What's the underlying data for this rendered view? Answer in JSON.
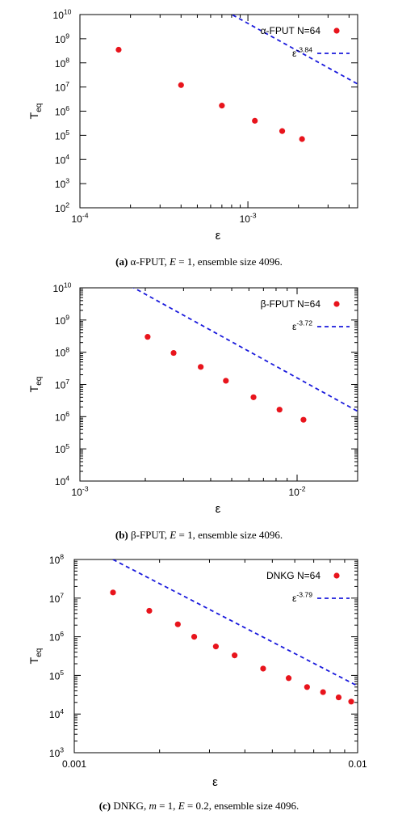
{
  "panels": [
    {
      "caption": {
        "label": "(a)",
        "pre": "α-FPUT, ",
        "var1": "E",
        "rest": " = 1, ensemble size 4096."
      },
      "chart_data": {
        "type": "scatter",
        "xscale": "log",
        "yscale": "log",
        "xlim": [
          0.0001,
          0.0045
        ],
        "ylim": [
          100,
          10000000000
        ],
        "xticks": [
          {
            "value": 0.0001,
            "base": "10",
            "exp": "-4"
          },
          {
            "value": 0.001,
            "base": "10",
            "exp": "-3"
          }
        ],
        "yticks": [
          {
            "value": 100,
            "base": "10",
            "exp": "2"
          },
          {
            "value": 1000,
            "base": "10",
            "exp": "3"
          },
          {
            "value": 10000,
            "base": "10",
            "exp": "4"
          },
          {
            "value": 100000,
            "base": "10",
            "exp": "5"
          },
          {
            "value": 1000000,
            "base": "10",
            "exp": "6"
          },
          {
            "value": 10000000,
            "base": "10",
            "exp": "7"
          },
          {
            "value": 100000000,
            "base": "10",
            "exp": "8"
          },
          {
            "value": 1000000000,
            "base": "10",
            "exp": "9"
          },
          {
            "value": 10000000000,
            "base": "10",
            "exp": "10"
          }
        ],
        "xlabel": "ε",
        "ylabel_base": "T",
        "ylabel_sub": "eq",
        "legend_position": "top-right",
        "series": [
          {
            "name": "α-FPUT N=64",
            "kind": "points",
            "color": "#e8141c",
            "x": [
              0.00017,
              0.0004,
              0.0007,
              0.0011,
              0.0016,
              0.0021
            ],
            "y": [
              350000000,
              12000000,
              1700000,
              400000,
              150000,
              70000
            ]
          },
          {
            "name_base": "ε",
            "name_exp": "-3.84",
            "kind": "fit",
            "color": "#1a1adc",
            "exponent": -3.84,
            "coefficient": 0.013,
            "xrange": [
              0.0001,
              0.0045
            ]
          }
        ]
      }
    },
    {
      "caption": {
        "label": "(b)",
        "pre": "β-FPUT, ",
        "var1": "E",
        "rest": " = 1, ensemble size 4096."
      },
      "chart_data": {
        "type": "scatter",
        "xscale": "log",
        "yscale": "log",
        "xlim": [
          0.001,
          0.019
        ],
        "ylim": [
          10000,
          10000000000
        ],
        "xticks": [
          {
            "value": 0.001,
            "base": "10",
            "exp": "-3"
          },
          {
            "value": 0.01,
            "base": "10",
            "exp": "-2"
          }
        ],
        "yticks": [
          {
            "value": 10000,
            "base": "10",
            "exp": "4"
          },
          {
            "value": 100000,
            "base": "10",
            "exp": "5"
          },
          {
            "value": 1000000,
            "base": "10",
            "exp": "6"
          },
          {
            "value": 10000000,
            "base": "10",
            "exp": "7"
          },
          {
            "value": 100000000,
            "base": "10",
            "exp": "8"
          },
          {
            "value": 1000000000,
            "base": "10",
            "exp": "9"
          },
          {
            "value": 10000000000,
            "base": "10",
            "exp": "10"
          }
        ],
        "xlabel": "ε",
        "ylabel_base": "T",
        "ylabel_sub": "eq",
        "legend_position": "top-right",
        "series": [
          {
            "name": "β-FPUT N=64",
            "kind": "points",
            "color": "#e8141c",
            "x": [
              0.00205,
              0.0027,
              0.0036,
              0.0047,
              0.0063,
              0.0083,
              0.0107
            ],
            "y": [
              300000000,
              95000000,
              35000000,
              13000000,
              4000000,
              1650000,
              800000
            ]
          },
          {
            "name_base": "ε",
            "name_exp": "-3.72",
            "kind": "fit",
            "color": "#1a1adc",
            "exponent": -3.72,
            "coefficient": 0.58,
            "xrange": [
              0.001,
              0.019
            ]
          }
        ]
      }
    },
    {
      "caption": {
        "label": "(c)",
        "pre": "DNKG, ",
        "var1": "m",
        "mid": " = 1, ",
        "var2": "E",
        "rest": " = 0.2, ensemble size 4096."
      },
      "chart_data": {
        "type": "scatter",
        "xscale": "log",
        "yscale": "log",
        "xlim": [
          0.001,
          0.01
        ],
        "ylim": [
          1000,
          100000000
        ],
        "xticks": [
          {
            "value": 0.001,
            "label": "0.001"
          },
          {
            "value": 0.01,
            "label": "0.01"
          }
        ],
        "yticks": [
          {
            "value": 1000,
            "base": "10",
            "exp": "3"
          },
          {
            "value": 10000,
            "base": "10",
            "exp": "4"
          },
          {
            "value": 100000,
            "base": "10",
            "exp": "5"
          },
          {
            "value": 1000000,
            "base": "10",
            "exp": "6"
          },
          {
            "value": 10000000,
            "base": "10",
            "exp": "7"
          },
          {
            "value": 100000000,
            "base": "10",
            "exp": "8"
          }
        ],
        "xlabel": "ε",
        "ylabel_base": "T",
        "ylabel_sub": "eq",
        "legend_position": "top-right",
        "series": [
          {
            "name": "DNKG N=64",
            "kind": "points",
            "color": "#e8141c",
            "x": [
              0.00137,
              0.00184,
              0.00232,
              0.00265,
              0.00316,
              0.00368,
              0.00464,
              0.00571,
              0.00663,
              0.00755,
              0.00857,
              0.00949
            ],
            "y": [
              14000000,
              4700000,
              2100000,
              1000000,
              560000,
              330000,
              150000,
              85000,
              50000,
              37000,
              27000,
              21000
            ]
          },
          {
            "name_base": "ε",
            "name_exp": "-3.79",
            "kind": "fit",
            "color": "#1a1adc",
            "exponent": -3.79,
            "coefficient": 0.0014,
            "xrange": [
              0.001,
              0.01
            ]
          }
        ]
      }
    }
  ]
}
